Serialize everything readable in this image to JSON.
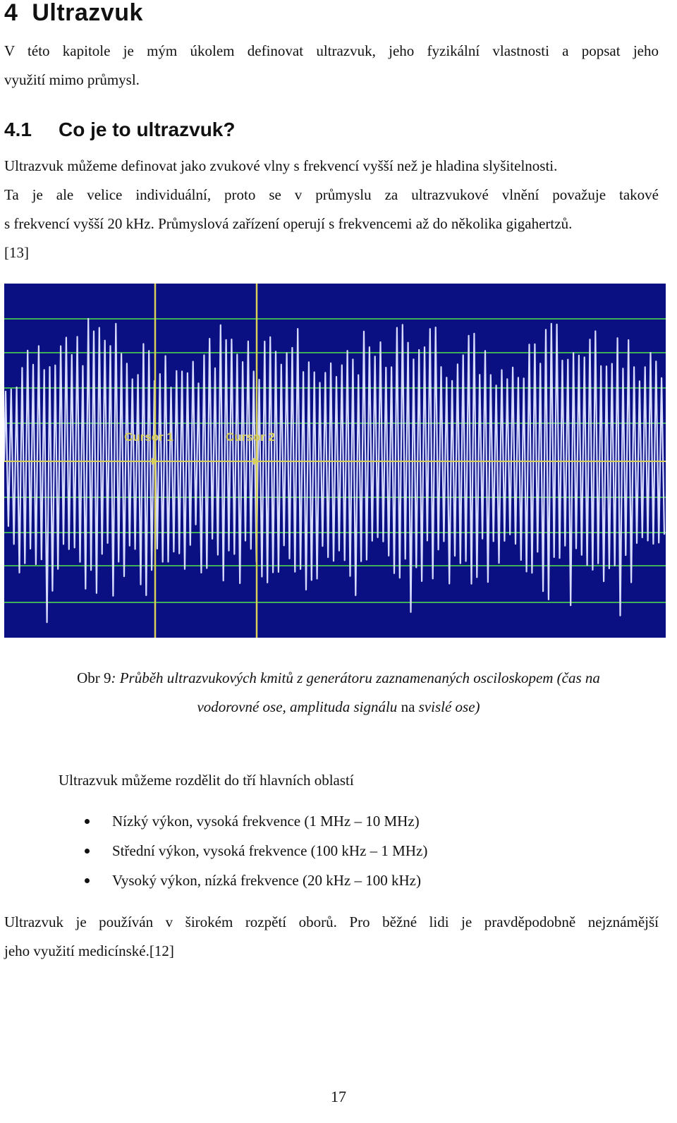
{
  "chapter": {
    "number": "4",
    "title": "Ultrazvuk",
    "intro_lines": [
      "V této kapitole je mým úkolem definovat ultrazvuk, jeho fyzikální vlastnosti a popsat jeho",
      "využití mimo průmysl."
    ]
  },
  "section": {
    "number": "4.1",
    "title": "Co je to ultrazvuk?",
    "paragraph_lines": [
      "Ultrazvuk můžeme definovat jako zvukové vlny s frekvencí vyšší než je hladina slyšitelnosti.",
      "Ta je ale velice individuální, proto se v průmyslu za ultrazvukové vlnění považuje takové",
      "s frekvencí vyšší 20 kHz. Průmyslová zařízení operují s frekvencemi až do několika gigahertzů.",
      "[13]"
    ]
  },
  "figure": {
    "cursor1_label": "Cursor 1",
    "cursor2_label": "Cursor 2",
    "colors": {
      "background": "#0a0f82",
      "grid": "#3fae58",
      "signal": "#d8dcff",
      "cursor": "#d8cf5a"
    },
    "caption_prefix": "Obr 9",
    "caption_line1": ": Průběh ultrazvukových kmitů z generátoru zaznamenaných osciloskopem (čas na",
    "caption_line2a": "vodorovné ose, amplituda signálu",
    "caption_line2b": " na ",
    "caption_line2c": "svislé ose)"
  },
  "list_intro": "Ultrazvuk můžeme rozdělit do tří hlavních oblastí",
  "list_items": [
    "Nízký výkon, vysoká frekvence (1 MHz – 10 MHz)",
    "Střední výkon, vysoká frekvence (100 kHz – 1 MHz)",
    "Vysoký výkon, nízká frekvence (20 kHz – 100 kHz)"
  ],
  "closing_lines": [
    "Ultrazvuk je používán v širokém rozpětí oborů. Pro běžné lidi je pravděpodobně nejznámější",
    "jeho využití medicínské.[12]"
  ],
  "page_number": "17"
}
